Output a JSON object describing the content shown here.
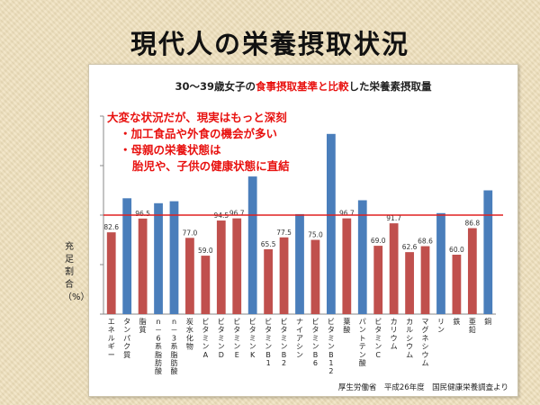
{
  "slide": {
    "title": "現代人の栄養摂取状況"
  },
  "annotation": {
    "lines": [
      "大変な状況だが、現実はもっと深刻",
      "・加工食品や外食の機会が多い",
      "・母親の栄養状態は",
      "胎児や、子供の健康状態に直結"
    ]
  },
  "source": "厚生労働省　平成26年度　国民健康栄養調査より",
  "chart_data": {
    "type": "bar",
    "title_parts": [
      "30～39歳女子の",
      "食事摂取基準と比較",
      "した栄養素摂取量"
    ],
    "ylabel": "充足割合（%）",
    "ylim": [
      0,
      200
    ],
    "yticks": [
      0,
      50,
      100,
      150,
      200
    ],
    "reference_line": 100,
    "categories": [
      "エネルギー",
      "タンパク質",
      "脂質",
      "n－6系脂肪酸",
      "n－3系脂肪酸",
      "炭水化物",
      "ビタミンA",
      "ビタミンD",
      "ビタミンE",
      "ビタミンK",
      "ビタミンB1",
      "ビタミンB2",
      "ナイアシン",
      "ビタミンB6",
      "ビタミンB12",
      "葉酸",
      "パントテン酸",
      "ビタミンC",
      "カリウム",
      "カルシウム",
      "マグネシウム",
      "リン",
      "鉄",
      "亜鉛",
      "銅"
    ],
    "values": [
      82.6,
      117,
      96.5,
      112,
      114,
      77.0,
      59.0,
      94.5,
      96.7,
      139,
      65.5,
      77.5,
      101,
      75.0,
      182,
      96.7,
      115,
      69.0,
      91.7,
      62.6,
      68.6,
      102,
      60.0,
      86.8,
      125
    ],
    "data_labels": [
      "82.6",
      "",
      "96.5",
      "",
      "",
      "77.0",
      "59.0",
      "94.5",
      "96.7",
      "",
      "65.5",
      "77.5",
      "",
      "75.0",
      "",
      "96.7",
      "",
      "69.0",
      "91.7",
      "62.6",
      "68.6",
      "",
      "60.0",
      "86.8",
      ""
    ],
    "bar_colors": [
      "red",
      "blue",
      "red",
      "blue",
      "blue",
      "red",
      "red",
      "red",
      "red",
      "blue",
      "red",
      "red",
      "blue",
      "red",
      "blue",
      "red",
      "blue",
      "red",
      "red",
      "red",
      "red",
      "blue",
      "red",
      "red",
      "blue"
    ],
    "colors": {
      "blue": "#4a7ebb",
      "red": "#c0504d",
      "line": "#e02020",
      "axis": "#888888",
      "highlight": "#e8110f"
    }
  }
}
